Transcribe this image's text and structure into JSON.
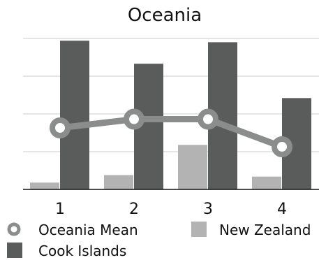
{
  "chart_data": {
    "type": "bar",
    "title": "Oceania",
    "xlabel": "",
    "ylabel": "",
    "categories": [
      "1",
      "2",
      "3",
      "4"
    ],
    "ylim": [
      0,
      4
    ],
    "grid": true,
    "series": [
      {
        "name": "New Zealand",
        "kind": "bar",
        "color": "#b3b3b3",
        "values": [
          0.18,
          0.38,
          1.18,
          0.34
        ]
      },
      {
        "name": "Cook Islands",
        "kind": "bar",
        "color": "#595c5b",
        "values": [
          3.94,
          3.33,
          3.9,
          2.42
        ]
      },
      {
        "name": "Oceania Mean",
        "kind": "line",
        "color": "#8a8d8c",
        "values": [
          1.63,
          1.86,
          1.86,
          1.13
        ]
      }
    ],
    "legend": {
      "placement": "bottom",
      "entries": [
        "Oceania Mean",
        "New Zealand",
        "Cook Islands"
      ]
    }
  }
}
